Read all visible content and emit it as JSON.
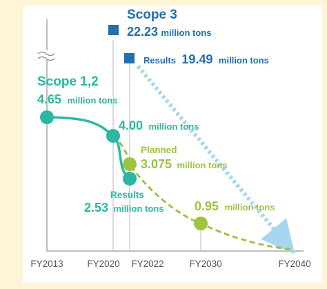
{
  "chart_data": {
    "type": "line",
    "x_ticks": [
      "FY2013",
      "FY2020",
      "FY2022",
      "FY2030",
      "FY2040"
    ],
    "series": [
      {
        "name": "Scope 1,2",
        "points": [
          {
            "x": "FY2013",
            "y": 4.65
          },
          {
            "x": "FY2020",
            "y": 4.0
          },
          {
            "x": "FY2022",
            "y": 2.53
          }
        ]
      },
      {
        "name": "Planned",
        "points": [
          {
            "x": "FY2020",
            "y": 4.0
          },
          {
            "x": "FY2022",
            "y": 3.075
          },
          {
            "x": "FY2030",
            "y": 0.95
          },
          {
            "x": "FY2040",
            "y": 0
          }
        ]
      },
      {
        "name": "Scope 3",
        "points": [
          {
            "x": "FY2020",
            "y": 22.23
          },
          {
            "x": "FY2022",
            "y": 19.49
          },
          {
            "x": "FY2040",
            "y": 0
          }
        ]
      }
    ],
    "annotations": {
      "scope3_title": "Scope 3",
      "scope3_2020_value": "22.23",
      "scope3_results_word": "Results",
      "scope3_2022_value": "19.49",
      "scope12_title": "Scope 1,2",
      "scope12_2013_value": "4.65",
      "scope12_2020_value": "4.00",
      "planned_word": "Planned",
      "planned_2022_value": "3.075",
      "results_word": "Results",
      "results_2022_value": "2.53",
      "planned_2030_value": "0.95",
      "unit": "million tons"
    },
    "colors": {
      "scope12": "#2ab8a4",
      "planned": "#9cc43e",
      "scope3": "#1f6fb2",
      "scope3_trend": "#a8d6f2"
    }
  }
}
